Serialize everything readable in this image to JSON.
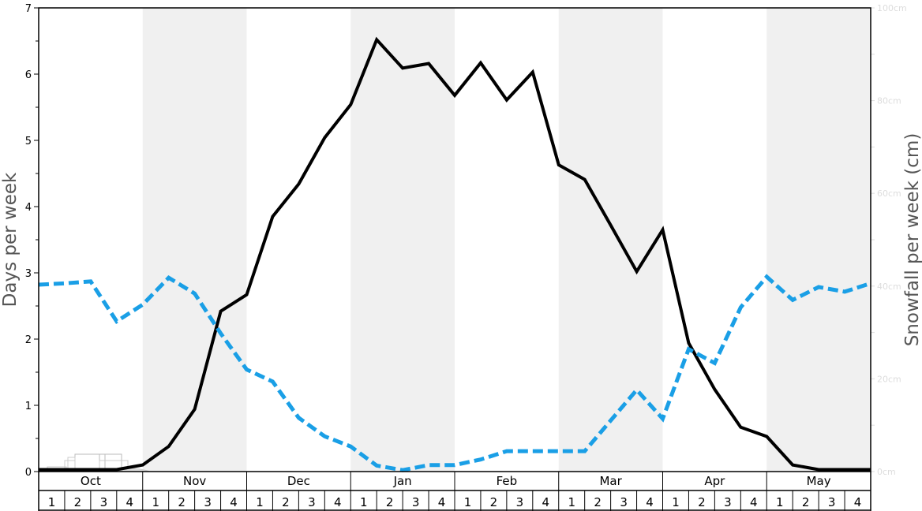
{
  "chart_data": {
    "type": "line",
    "ylabel": "Days per week",
    "y2label": "Snowfall per week (cm)",
    "ylim": [
      0,
      7
    ],
    "y2lim": [
      0,
      100
    ],
    "yticks": [
      "0",
      "1",
      "2",
      "3",
      "4",
      "5",
      "6",
      "7"
    ],
    "y2ticks": [
      "0cm",
      "20cm",
      "40cm",
      "60cm",
      "80cm",
      "100cm"
    ],
    "months": [
      "Oct",
      "Nov",
      "Dec",
      "Jan",
      "Feb",
      "Mar",
      "Apr",
      "May"
    ],
    "weeks": [
      "1",
      "2",
      "3",
      "4"
    ],
    "shaded_months": [
      "Nov",
      "Jan",
      "Mar",
      "May"
    ],
    "series": [
      {
        "axis": "left",
        "color": "#000000",
        "style": "solid",
        "values": [
          0.03,
          0.03,
          0.03,
          0.03,
          0.1,
          0.38,
          0.94,
          2.42,
          2.67,
          3.85,
          4.34,
          5.04,
          5.54,
          6.52,
          6.09,
          6.16,
          5.68,
          6.17,
          5.61,
          6.03,
          4.63,
          4.41,
          3.72,
          3.02,
          3.65,
          1.94,
          1.24,
          0.67,
          0.53,
          0.1,
          0.03,
          0.03,
          0.03
        ]
      },
      {
        "axis": "right",
        "color": "#1a9fe6",
        "style": "dashed",
        "values": [
          40.3,
          40.6,
          41,
          32.4,
          36,
          41.8,
          38.4,
          29.8,
          22,
          19.4,
          11.6,
          7.6,
          5.4,
          1.3,
          0.3,
          1.4,
          1.4,
          2.6,
          4.4,
          4.4,
          4.4,
          4.4,
          11,
          17.6,
          11.4,
          26.4,
          23.4,
          35.4,
          42,
          37,
          39.8,
          38.8,
          40.6
        ]
      }
    ]
  }
}
